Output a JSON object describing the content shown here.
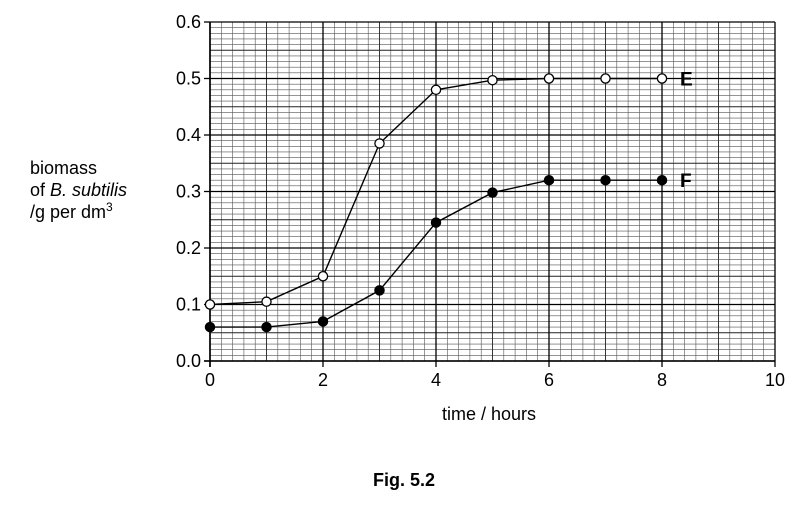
{
  "chart_data": {
    "type": "line",
    "title": "",
    "caption": "Fig. 5.2",
    "ylabel": {
      "line1": "biomass",
      "line2_prefix": "of ",
      "line2_italic": "B. subtilis",
      "line3": "/g per dm",
      "line3_superscript": "3"
    },
    "xlabel": "time / hours",
    "xlim": [
      0,
      10
    ],
    "ylim": [
      0.0,
      0.6
    ],
    "xticks": [
      0,
      2,
      4,
      6,
      8,
      10
    ],
    "yticks": [
      "0.0",
      "0.1",
      "0.2",
      "0.3",
      "0.4",
      "0.5",
      "0.6"
    ],
    "grid": true,
    "series": [
      {
        "name": "E",
        "marker": "open-circle",
        "x": [
          0,
          1,
          2,
          3,
          4,
          5,
          6,
          7,
          8
        ],
        "y": [
          0.1,
          0.105,
          0.15,
          0.385,
          0.48,
          0.497,
          0.5,
          0.5,
          0.5
        ]
      },
      {
        "name": "F",
        "marker": "filled-circle",
        "x": [
          0,
          1,
          2,
          3,
          4,
          5,
          6,
          7,
          8
        ],
        "y": [
          0.06,
          0.06,
          0.07,
          0.125,
          0.245,
          0.298,
          0.32,
          0.32,
          0.32
        ]
      }
    ]
  }
}
